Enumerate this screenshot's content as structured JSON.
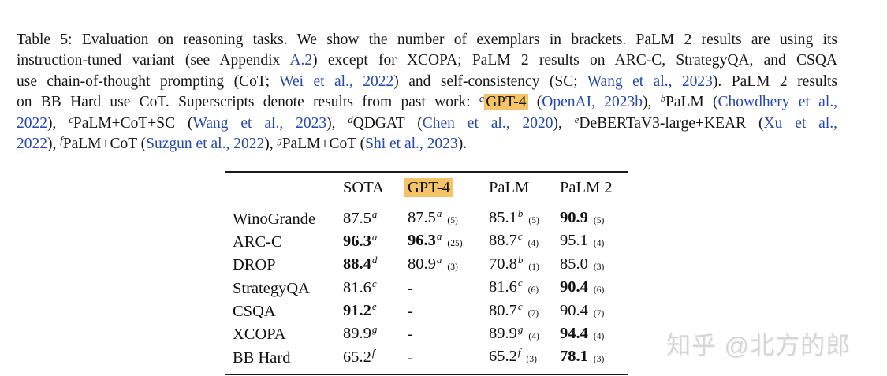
{
  "colors": {
    "link": "#2646b0",
    "highlight": "#f5c466",
    "text": "#161616",
    "watermark": "#d6d6d6"
  },
  "caption": {
    "lines": [
      [
        {
          "t": "Table 5: Evaluation on reasoning tasks. We show the number of exemplars in brackets. PaLM 2 results are using its"
        }
      ],
      [
        {
          "t": "instruction-tuned variant (see Appendix "
        },
        {
          "t": "A.2",
          "s": "link"
        },
        {
          "t": ") except for XCOPA; PaLM 2 results on ARC-C, StrategyQA, and CSQA"
        }
      ],
      [
        {
          "t": "use chain-of-thought prompting (CoT; "
        },
        {
          "t": "Wei et al., 2022",
          "s": "link"
        },
        {
          "t": ") and self-consistency (SC; "
        },
        {
          "t": "Wang et al., 2023",
          "s": "link"
        },
        {
          "t": "). PaLM 2 results"
        }
      ],
      [
        {
          "t": "on BB Hard use CoT. Superscripts denote results from past work: "
        },
        {
          "t": "a",
          "s": "sup"
        },
        {
          "t": "GPT-4",
          "s": "hl"
        },
        {
          "t": " ("
        },
        {
          "t": "OpenAI, 2023b",
          "s": "link"
        },
        {
          "t": "), "
        },
        {
          "t": "b",
          "s": "sup"
        },
        {
          "t": "PaLM ("
        },
        {
          "t": "Chowdhery et al.,",
          "s": "link"
        }
      ],
      [
        {
          "t": "2022",
          "s": "link"
        },
        {
          "t": "), "
        },
        {
          "t": "c",
          "s": "sup"
        },
        {
          "t": "PaLM+CoT+SC ("
        },
        {
          "t": "Wang et al., 2023",
          "s": "link"
        },
        {
          "t": "), "
        },
        {
          "t": "d",
          "s": "sup"
        },
        {
          "t": "QDGAT ("
        },
        {
          "t": "Chen et al., 2020",
          "s": "link"
        },
        {
          "t": "), "
        },
        {
          "t": "e",
          "s": "sup"
        },
        {
          "t": "DeBERTaV3-large+KEAR ("
        },
        {
          "t": "Xu et al.,",
          "s": "link"
        }
      ],
      [
        {
          "t": "2022",
          "s": "link"
        },
        {
          "t": "), "
        },
        {
          "t": "f",
          "s": "sup"
        },
        {
          "t": "PaLM+CoT ("
        },
        {
          "t": "Suzgun et al., 2022",
          "s": "link"
        },
        {
          "t": "), "
        },
        {
          "t": "g",
          "s": "sup"
        },
        {
          "t": "PaLM+CoT ("
        },
        {
          "t": "Shi et al., 2023",
          "s": "link"
        },
        {
          "t": ")."
        }
      ]
    ]
  },
  "table": {
    "headers": [
      {
        "t": ""
      },
      {
        "t": "SOTA"
      },
      {
        "t": "GPT-4",
        "highlight": true
      },
      {
        "t": "PaLM"
      },
      {
        "t": "PaLM 2"
      }
    ],
    "rows": [
      {
        "task": "WinoGrande",
        "cells": [
          {
            "v": "87.5",
            "sup": "a"
          },
          {
            "v": "87.5",
            "sup": "a",
            "n": "(5)"
          },
          {
            "v": "85.1",
            "sup": "b",
            "n": "(5)"
          },
          {
            "v": "90.9",
            "bold": true,
            "n": "(5)"
          }
        ]
      },
      {
        "task": "ARC-C",
        "cells": [
          {
            "v": "96.3",
            "bold": true,
            "sup": "a"
          },
          {
            "v": "96.3",
            "bold": true,
            "sup": "a",
            "n": "(25)"
          },
          {
            "v": "88.7",
            "sup": "c",
            "n": "(4)"
          },
          {
            "v": "95.1",
            "n": "(4)"
          }
        ]
      },
      {
        "task": "DROP",
        "cells": [
          {
            "v": "88.4",
            "bold": true,
            "sup": "d"
          },
          {
            "v": "80.9",
            "sup": "a",
            "n": "(3)"
          },
          {
            "v": "70.8",
            "sup": "b",
            "n": "(1)"
          },
          {
            "v": "85.0",
            "n": "(3)"
          }
        ]
      },
      {
        "task": "StrategyQA",
        "cells": [
          {
            "v": "81.6",
            "sup": "c"
          },
          {
            "v": "-"
          },
          {
            "v": "81.6",
            "sup": "c",
            "n": "(6)"
          },
          {
            "v": "90.4",
            "bold": true,
            "n": "(6)"
          }
        ]
      },
      {
        "task": "CSQA",
        "cells": [
          {
            "v": "91.2",
            "bold": true,
            "sup": "e"
          },
          {
            "v": "-"
          },
          {
            "v": "80.7",
            "sup": "c",
            "n": "(7)"
          },
          {
            "v": "90.4",
            "n": "(7)"
          }
        ]
      },
      {
        "task": "XCOPA",
        "cells": [
          {
            "v": "89.9",
            "sup": "g"
          },
          {
            "v": "-"
          },
          {
            "v": "89.9",
            "sup": "g",
            "n": "(4)"
          },
          {
            "v": "94.4",
            "bold": true,
            "n": "(4)"
          }
        ]
      },
      {
        "task": "BB Hard",
        "cells": [
          {
            "v": "65.2",
            "sup": "f"
          },
          {
            "v": "-"
          },
          {
            "v": "65.2",
            "sup": "f",
            "n": "(3)"
          },
          {
            "v": "78.1",
            "bold": true,
            "n": "(3)"
          }
        ]
      }
    ]
  },
  "watermark": {
    "text": "知乎 @北方的郎"
  }
}
